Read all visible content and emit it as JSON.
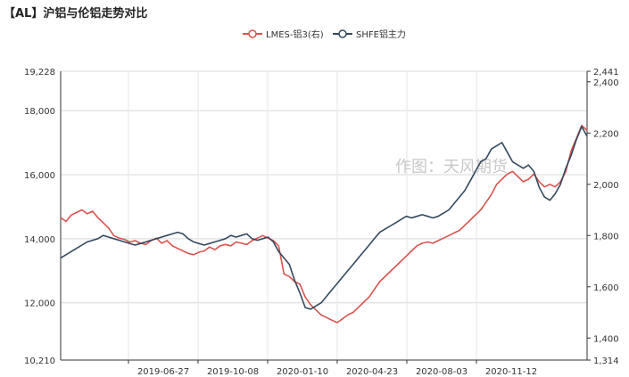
{
  "title": "【AL】沪铝与伦铝走势对比",
  "watermark": "作图：天风期货",
  "chart_data": {
    "type": "line",
    "grid": true,
    "legend": "top-center",
    "x_labels": [
      "2019-06-27",
      "2019-10-08",
      "2020-01-10",
      "2020-04-23",
      "2020-08-03",
      "2020-11-12"
    ],
    "left_axis": {
      "min": 10210,
      "max": 19228,
      "ticks": [
        "10,210",
        "12,000",
        "14,000",
        "16,000",
        "18,000",
        "19,228"
      ]
    },
    "right_axis": {
      "min": 1314,
      "max": 2441,
      "ticks": [
        "1,314",
        "1,400",
        "1,600",
        "1,800",
        "2,000",
        "2,200",
        "2,400",
        "2,441"
      ]
    },
    "series": [
      {
        "name": "LMES-铝3(右)",
        "axis": "right",
        "color": "#d9534f",
        "values": [
          1870,
          1855,
          1880,
          1890,
          1900,
          1885,
          1895,
          1870,
          1850,
          1830,
          1800,
          1790,
          1785,
          1775,
          1780,
          1770,
          1765,
          1780,
          1790,
          1770,
          1780,
          1760,
          1750,
          1740,
          1730,
          1725,
          1735,
          1740,
          1755,
          1745,
          1760,
          1765,
          1760,
          1775,
          1770,
          1765,
          1780,
          1790,
          1800,
          1790,
          1780,
          1760,
          1650,
          1640,
          1620,
          1610,
          1560,
          1530,
          1510,
          1490,
          1480,
          1470,
          1460,
          1475,
          1490,
          1500,
          1520,
          1540,
          1560,
          1590,
          1620,
          1640,
          1660,
          1680,
          1700,
          1720,
          1740,
          1760,
          1770,
          1775,
          1770,
          1780,
          1790,
          1800,
          1810,
          1820,
          1840,
          1860,
          1880,
          1900,
          1930,
          1960,
          2000,
          2020,
          2040,
          2050,
          2030,
          2010,
          2020,
          2040,
          2010,
          1990,
          2000,
          1990,
          2010,
          2050,
          2130,
          2180,
          2230,
          2210
        ]
      },
      {
        "name": "SHFE铝主力",
        "axis": "left",
        "color": "#34495e",
        "values": [
          13400,
          13500,
          13600,
          13700,
          13800,
          13900,
          13950,
          14000,
          14100,
          14050,
          14000,
          13950,
          13900,
          13850,
          13800,
          13850,
          13900,
          13950,
          14000,
          14050,
          14100,
          14150,
          14200,
          14150,
          14000,
          13900,
          13850,
          13800,
          13850,
          13900,
          13950,
          14000,
          14100,
          14050,
          14100,
          14150,
          14000,
          13950,
          14000,
          14050,
          13900,
          13600,
          13400,
          13200,
          12700,
          12300,
          11850,
          11800,
          11900,
          12000,
          12200,
          12400,
          12600,
          12800,
          13000,
          13200,
          13400,
          13600,
          13800,
          14000,
          14200,
          14300,
          14400,
          14500,
          14600,
          14700,
          14650,
          14700,
          14750,
          14700,
          14650,
          14700,
          14800,
          14900,
          15100,
          15300,
          15500,
          15800,
          16100,
          16400,
          16500,
          16800,
          16900,
          17000,
          16700,
          16400,
          16300,
          16200,
          16300,
          16100,
          15600,
          15300,
          15200,
          15400,
          15700,
          16200,
          16600,
          17100,
          17500,
          17200
        ]
      }
    ]
  }
}
